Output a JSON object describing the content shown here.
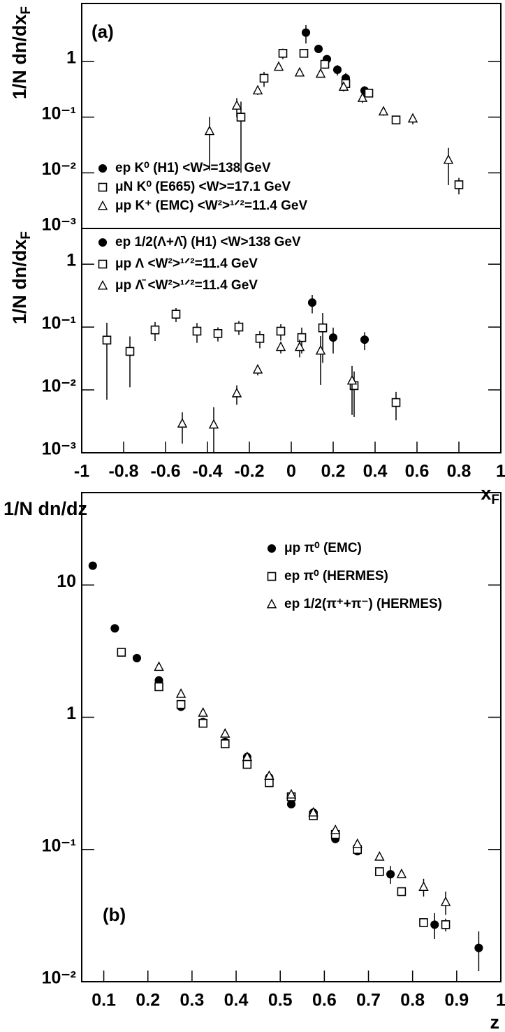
{
  "chart_data": [
    {
      "type": "scatter",
      "log_y": true,
      "annotation": "(a)",
      "ylabel": {
        "text": "1/N dn/dx",
        "sub": "F"
      },
      "xlim": [
        -1,
        1
      ],
      "ylim": [
        0.001,
        11
      ],
      "yticks": [
        {
          "value": 0.001,
          "label": "10⁻³"
        },
        {
          "value": 0.01,
          "label": "10⁻²"
        },
        {
          "value": 0.1,
          "label": "10⁻¹"
        },
        1
      ],
      "legend": "lower-left",
      "series": [
        {
          "name": "ep K⁰ (H1) <W>=138 GeV",
          "marker": "circle",
          "color": "#000000",
          "x": [
            0.07,
            0.13,
            0.17,
            0.22,
            0.26,
            0.35
          ],
          "values": [
            3.3,
            1.68,
            1.1,
            0.71,
            0.5,
            0.3
          ],
          "errors": [
            1.2,
            0.2,
            0.15,
            0.15,
            0.12,
            0.06
          ]
        },
        {
          "name": "μN K⁰ (E665) <W>=17.1 GeV",
          "marker": "square",
          "color": "#000000",
          "x": [
            -0.24,
            -0.13,
            -0.04,
            0.06,
            0.16,
            0.26,
            0.37,
            0.5,
            0.8
          ],
          "values": [
            0.1,
            0.5,
            1.4,
            1.4,
            0.89,
            0.4,
            0.27,
            0.089,
            0.0061
          ],
          "errors": [
            0.09,
            0.15,
            0.3,
            0.2,
            0.15,
            0.08,
            0.04,
            0.015,
            0.002
          ]
        },
        {
          "name": "μp K⁺ (EMC) <W²>¹ᐟ²=11.4 GeV",
          "marker": "triangle",
          "color": "#000000",
          "x": [
            -0.39,
            -0.26,
            -0.16,
            -0.06,
            0.04,
            0.14,
            0.25,
            0.34,
            0.44,
            0.58,
            0.75
          ],
          "values": [
            0.056,
            0.16,
            0.3,
            0.8,
            0.63,
            0.6,
            0.35,
            0.22,
            0.126,
            0.094,
            0.017
          ],
          "errors": [
            0.045,
            0.06,
            0.05,
            0.1,
            0.08,
            0.08,
            0.06,
            0.04,
            0.02,
            0.02,
            0.011
          ]
        }
      ]
    },
    {
      "type": "scatter",
      "log_y": true,
      "ylabel": {
        "text": "1/N dn/dx",
        "sub": "F"
      },
      "xlabel": {
        "text": "x",
        "sub": "F"
      },
      "xlim": [
        -1,
        1
      ],
      "ylim": [
        0.001,
        3.7
      ],
      "xticks": [
        -1,
        -0.8,
        -0.6,
        -0.4,
        -0.2,
        0,
        0.2,
        0.4,
        0.6,
        0.8,
        1
      ],
      "yticks": [
        {
          "value": 0.001,
          "label": "10⁻³"
        },
        {
          "value": 0.01,
          "label": "10⁻²"
        },
        {
          "value": 0.1,
          "label": "10⁻¹"
        },
        1
      ],
      "legend": "upper-left",
      "series": [
        {
          "name": "ep 1/2(Λ+Λ̄) (H1)  <W>138 GeV",
          "marker": "circle",
          "color": "#000000",
          "x": [
            0.1,
            0.2,
            0.35
          ],
          "values": [
            0.245,
            0.068,
            0.063
          ],
          "errors": [
            0.08,
            0.03,
            0.02
          ]
        },
        {
          "name": "μp Λ  <W²>¹ᐟ²=11.4 GeV",
          "marker": "square",
          "color": "#000000",
          "x": [
            -0.88,
            -0.77,
            -0.65,
            -0.55,
            -0.45,
            -0.35,
            -0.25,
            -0.15,
            -0.05,
            0.05,
            0.15,
            0.3,
            0.5
          ],
          "values": [
            0.062,
            0.041,
            0.09,
            0.16,
            0.086,
            0.079,
            0.1,
            0.066,
            0.086,
            0.068,
            0.097,
            0.0117,
            0.0063
          ],
          "errors": [
            0.055,
            0.03,
            0.03,
            0.04,
            0.03,
            0.02,
            0.025,
            0.02,
            0.025,
            0.03,
            0.07,
            0.008,
            0.003
          ]
        },
        {
          "name": "μp Λ̄  <W²>¹ᐟ²=11.4 GeV",
          "marker": "triangle",
          "color": "#000000",
          "x": [
            -0.52,
            -0.37,
            -0.26,
            -0.16,
            -0.05,
            0.04,
            0.14,
            0.29
          ],
          "values": [
            0.0029,
            0.0028,
            0.0088,
            0.021,
            0.048,
            0.048,
            0.042,
            0.014
          ],
          "errors": [
            0.0015,
            0.0025,
            0.003,
            0.004,
            0.01,
            0.015,
            0.03,
            0.01
          ]
        }
      ]
    },
    {
      "type": "scatter",
      "log_y": true,
      "annotation": "(b)",
      "ylabel": {
        "text": "1/N dn/dz"
      },
      "xlabel": {
        "text": "z"
      },
      "xlim": [
        0.05,
        1
      ],
      "ylim": [
        0.01,
        50
      ],
      "xticks": [
        0.1,
        0.2,
        0.3,
        0.4,
        0.5,
        0.6,
        0.7,
        0.8,
        0.9,
        1
      ],
      "yticks": [
        {
          "value": 0.01,
          "label": "10⁻²"
        },
        {
          "value": 0.1,
          "label": "10⁻¹"
        },
        1,
        10
      ],
      "legend": "upper-right",
      "series": [
        {
          "name": "μp π⁰  (EMC)",
          "marker": "circle",
          "color": "#000000",
          "x": [
            0.075,
            0.125,
            0.175,
            0.225,
            0.275,
            0.325,
            0.375,
            0.425,
            0.475,
            0.525,
            0.575,
            0.625,
            0.675,
            0.75,
            0.85,
            0.95
          ],
          "values": [
            14,
            4.7,
            2.8,
            1.9,
            1.2,
            0.92,
            0.65,
            0.5,
            0.35,
            0.22,
            0.19,
            0.12,
            0.097,
            0.065,
            0.027,
            0.018
          ],
          "errors": [
            null,
            null,
            null,
            null,
            null,
            null,
            null,
            null,
            null,
            null,
            null,
            null,
            null,
            0.01,
            0.006,
            0.006
          ]
        },
        {
          "name": "ep π⁰ (HERMES)",
          "marker": "square",
          "color": "#000000",
          "x": [
            0.14,
            0.225,
            0.275,
            0.325,
            0.375,
            0.425,
            0.475,
            0.525,
            0.575,
            0.625,
            0.675,
            0.725,
            0.775,
            0.825,
            0.875
          ],
          "values": [
            3.1,
            1.7,
            1.25,
            0.9,
            0.63,
            0.44,
            0.32,
            0.25,
            0.18,
            0.13,
            0.1,
            0.068,
            0.048,
            0.028,
            0.027
          ],
          "errors": [
            null,
            null,
            null,
            null,
            null,
            null,
            null,
            null,
            null,
            null,
            null,
            null,
            null,
            null,
            0.003
          ]
        },
        {
          "name": "ep 1/2(π⁺+π⁻) (HERMES)",
          "marker": "triangle",
          "color": "#000000",
          "x": [
            0.225,
            0.275,
            0.325,
            0.375,
            0.425,
            0.475,
            0.525,
            0.575,
            0.625,
            0.675,
            0.725,
            0.775,
            0.825,
            0.875
          ],
          "values": [
            2.4,
            1.5,
            1.08,
            0.75,
            0.5,
            0.36,
            0.26,
            0.19,
            0.14,
            0.11,
            0.088,
            0.065,
            0.052,
            0.04
          ],
          "errors": [
            null,
            null,
            null,
            null,
            null,
            null,
            null,
            null,
            null,
            null,
            null,
            null,
            0.008,
            0.008
          ]
        }
      ]
    }
  ]
}
